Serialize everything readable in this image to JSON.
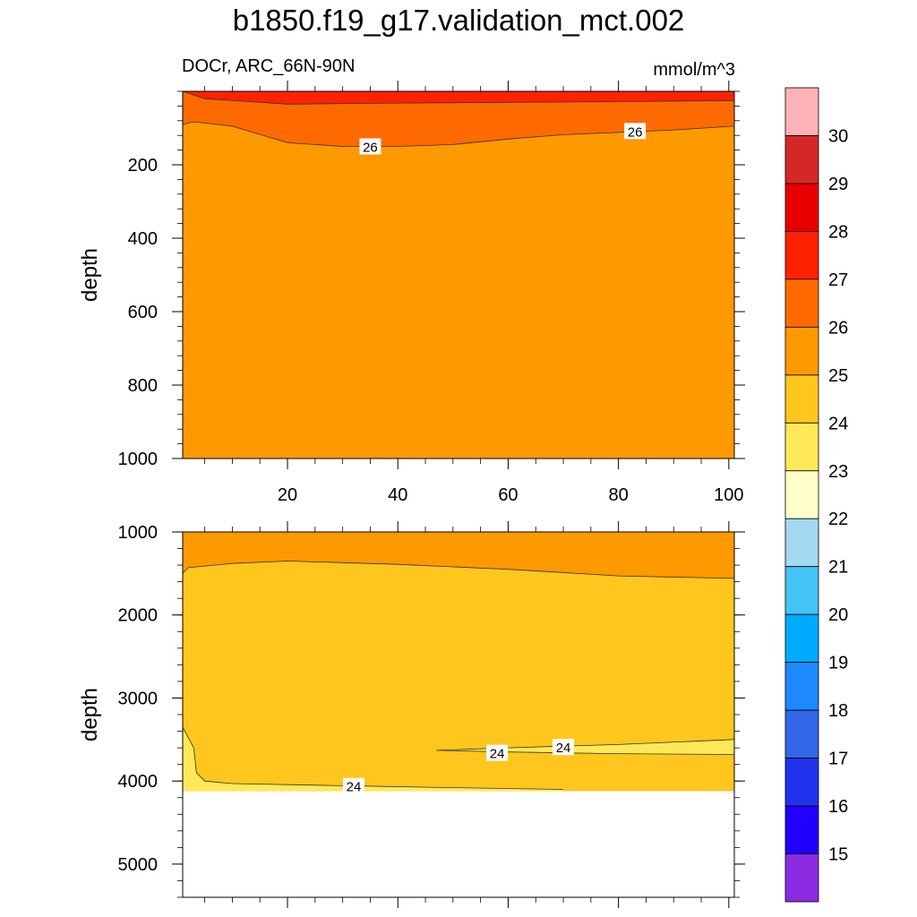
{
  "title": "b1850.f19_g17.validation_mct.002",
  "subtitle_left": "DOCr, ARC_66N-90N",
  "subtitle_right": "mmol/m^3",
  "colorbar": {
    "levels": [
      "15",
      "16",
      "17",
      "18",
      "19",
      "20",
      "21",
      "22",
      "23",
      "24",
      "25",
      "26",
      "27",
      "28",
      "29",
      "30"
    ],
    "colors": [
      "#8a2be2",
      "#2200ff",
      "#2233ee",
      "#3366e6",
      "#1e88ff",
      "#00aaff",
      "#44c4f4",
      "#a4d8ee",
      "#ffffcc",
      "#ffe958",
      "#ffc61e",
      "#ff9900",
      "#ff6a00",
      "#ff2200",
      "#e60000",
      "#d42828",
      "#ffb3b8"
    ]
  },
  "chart_data": [
    {
      "type": "contour",
      "panel": "upper",
      "ylabel": "depth",
      "xlim": [
        1,
        101
      ],
      "ylim": [
        1000,
        0
      ],
      "x_ticks": [
        20,
        40,
        60,
        80,
        100
      ],
      "y_ticks": [
        200,
        400,
        600,
        800,
        1000
      ],
      "fills": [
        {
          "range": "25-26",
          "color": "#ff9900",
          "region": "background"
        },
        {
          "range": "26-27",
          "color": "#ff6a00",
          "region": "upper band"
        },
        {
          "range": "27-28",
          "color": "#ff2200",
          "region": "surface"
        }
      ],
      "contours": [
        {
          "level": 27,
          "x": [
            1,
            5,
            20,
            40,
            60,
            80,
            101
          ],
          "y": [
            0,
            20,
            35,
            32,
            30,
            28,
            25
          ]
        },
        {
          "level": 26,
          "x": [
            1,
            3,
            10,
            20,
            30,
            40,
            50,
            60,
            70,
            80,
            90,
            101
          ],
          "y": [
            90,
            83,
            95,
            140,
            150,
            150,
            145,
            130,
            118,
            112,
            105,
            95
          ]
        }
      ],
      "contour_labels": [
        {
          "text": "26",
          "x": 35,
          "y": 150
        },
        {
          "text": "26",
          "x": 83,
          "y": 108
        }
      ]
    },
    {
      "type": "contour",
      "panel": "lower",
      "ylabel": "depth",
      "xlim": [
        1,
        101
      ],
      "ylim": [
        5400,
        1000
      ],
      "y_ticks": [
        1000,
        2000,
        3000,
        4000,
        5000
      ],
      "bottom_of_data": 4120,
      "fills": [
        {
          "range": "25-26",
          "color": "#ff9900",
          "region": "top"
        },
        {
          "range": "24-25",
          "color": "#ffc61e",
          "region": "middle"
        },
        {
          "range": "23-24",
          "color": "#ffe958",
          "region": "bottom"
        }
      ],
      "contours": [
        {
          "level": 25,
          "x": [
            1,
            2,
            10,
            20,
            40,
            60,
            80,
            101
          ],
          "y": [
            1500,
            1430,
            1380,
            1350,
            1390,
            1450,
            1530,
            1560
          ]
        },
        {
          "level": 24,
          "x": [
            1,
            3,
            3.5,
            5,
            10,
            25,
            50,
            70
          ],
          "y": [
            3350,
            3600,
            3900,
            4000,
            4030,
            4050,
            4080,
            4100
          ]
        },
        {
          "level": 24,
          "x": [
            47,
            60,
            70,
            80,
            101
          ],
          "y": [
            3630,
            3600,
            3580,
            3560,
            3500
          ]
        },
        {
          "level": 24,
          "x": [
            47,
            60,
            70,
            80,
            101
          ],
          "y": [
            3630,
            3650,
            3660,
            3670,
            3680
          ]
        }
      ],
      "contour_labels": [
        {
          "text": "24",
          "x": 58,
          "y": 3660
        },
        {
          "text": "24",
          "x": 70,
          "y": 3590
        },
        {
          "text": "24",
          "x": 32,
          "y": 4060
        }
      ]
    }
  ]
}
